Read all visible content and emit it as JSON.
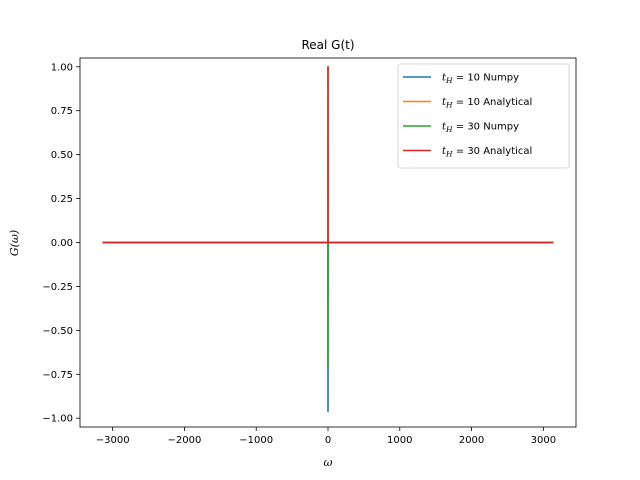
{
  "chart_data": {
    "type": "line",
    "title": "Real G(t)",
    "xlabel": "ω",
    "ylabel": "G(ω)",
    "xlim": [
      -3455,
      3455
    ],
    "ylim": [
      -1.05,
      1.05
    ],
    "xticks": [
      -3000,
      -2000,
      -1000,
      0,
      1000,
      2000,
      3000
    ],
    "xtick_labels": [
      "−3000",
      "−2000",
      "−1000",
      "0",
      "1000",
      "2000",
      "3000"
    ],
    "yticks": [
      -1.0,
      -0.75,
      -0.5,
      -0.25,
      0.0,
      0.25,
      0.5,
      0.75,
      1.0
    ],
    "ytick_labels": [
      "−1.00",
      "−0.75",
      "−0.50",
      "−0.25",
      "0.00",
      "0.25",
      "0.50",
      "0.75",
      "1.00"
    ],
    "grid": false,
    "legend_position": "top-right",
    "series": [
      {
        "name": "t_H = 10 Numpy",
        "label_sub": "H",
        "label_rest": " = 10 Numpy",
        "color": "#1f77b4",
        "x": [
          -3141.6,
          -0.5,
          0,
          0.5,
          3141.6
        ],
        "y": [
          0,
          0,
          -0.96,
          0,
          0
        ]
      },
      {
        "name": "t_H = 10 Analytical",
        "label_sub": "H",
        "label_rest": " = 10 Analytical",
        "color": "#ff7f0e",
        "x": [
          -3141.6,
          -0.5,
          0,
          0.5,
          3141.6
        ],
        "y": [
          0,
          0,
          1.0,
          0,
          0
        ]
      },
      {
        "name": "t_H = 30 Numpy",
        "label_sub": "H",
        "label_rest": " = 30 Numpy",
        "color": "#2ca02c",
        "x": [
          -3141.6,
          -0.5,
          0,
          0.5,
          3141.6
        ],
        "y": [
          0,
          0,
          -0.71,
          0,
          0
        ]
      },
      {
        "name": "t_H = 30 Analytical",
        "label_sub": "H",
        "label_rest": " = 30 Analytical",
        "color": "#d62728",
        "x": [
          -3141.6,
          -0.5,
          0,
          0.5,
          3141.6
        ],
        "y": [
          0,
          0,
          1.0,
          0,
          0
        ]
      }
    ]
  }
}
